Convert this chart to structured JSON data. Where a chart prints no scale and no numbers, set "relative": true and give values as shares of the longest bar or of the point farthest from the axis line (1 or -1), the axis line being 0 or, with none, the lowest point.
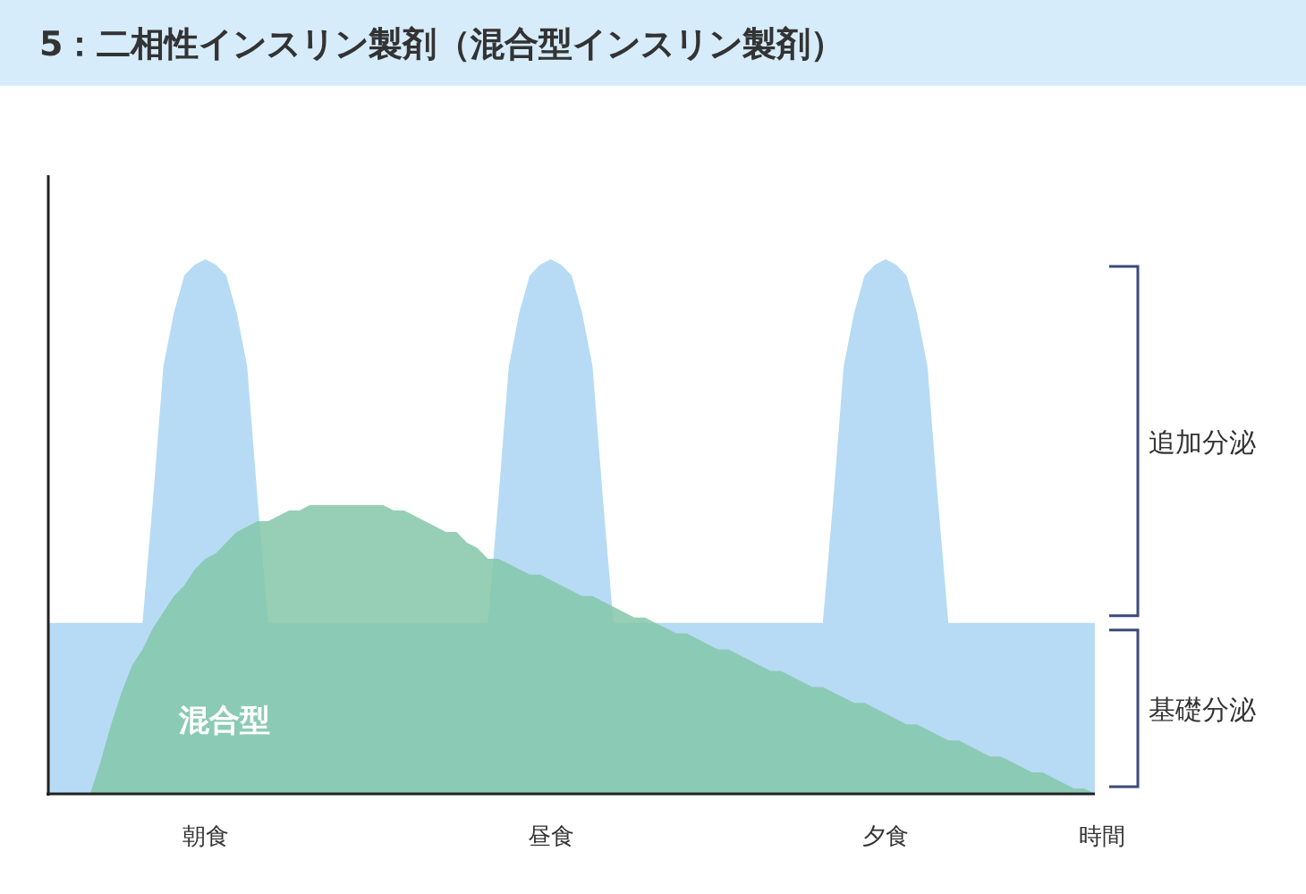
{
  "chart_data": {
    "type": "area",
    "title": "5：二相性インスリン製剤（混合型インスリン製剤）",
    "xlabel": "時間",
    "relative": true,
    "tick_labels": "x",
    "categories": [
      null,
      null,
      null,
      null,
      null,
      null,
      null,
      null,
      null,
      null,
      null,
      null,
      null,
      null,
      null,
      "朝食",
      null,
      null,
      null,
      null,
      null,
      null,
      null,
      null,
      null,
      null,
      null,
      null,
      null,
      null,
      null,
      null,
      null,
      null,
      null,
      null,
      null,
      null,
      null,
      null,
      null,
      null,
      null,
      null,
      null,
      null,
      null,
      null,
      "昼食",
      null,
      null,
      null,
      null,
      null,
      null,
      null,
      null,
      null,
      null,
      null,
      null,
      null,
      null,
      null,
      null,
      null,
      null,
      null,
      null,
      null,
      null,
      null,
      null,
      null,
      null,
      null,
      null,
      null,
      null,
      null,
      "夕食",
      null,
      null,
      null,
      null,
      null,
      null,
      null,
      null,
      null,
      null,
      null,
      null,
      null,
      null,
      null,
      null,
      null,
      null,
      null,
      null
    ],
    "annotations": [
      "追加分泌",
      "基礎分泌"
    ],
    "series": [
      {
        "color": "#b7dbf5",
        "values": [
          0.32,
          0.32,
          0.32,
          0.32,
          0.32,
          0.32,
          0.32,
          0.32,
          0.32,
          0.32,
          0.55,
          0.8,
          0.9,
          0.97,
          0.99,
          1,
          0.99,
          0.97,
          0.9,
          0.8,
          0.55,
          0.32,
          0.32,
          0.32,
          0.32,
          0.32,
          0.32,
          0.32,
          0.32,
          0.32,
          0.32,
          0.32,
          0.32,
          0.32,
          0.32,
          0.32,
          0.32,
          0.32,
          0.32,
          0.32,
          0.32,
          0.32,
          0.32,
          0.55,
          0.8,
          0.9,
          0.97,
          0.99,
          1,
          0.99,
          0.97,
          0.9,
          0.8,
          0.55,
          0.32,
          0.32,
          0.32,
          0.32,
          0.32,
          0.32,
          0.32,
          0.32,
          0.32,
          0.32,
          0.32,
          0.32,
          0.32,
          0.32,
          0.32,
          0.32,
          0.32,
          0.32,
          0.32,
          0.32,
          0.32,
          0.55,
          0.8,
          0.9,
          0.97,
          0.99,
          1,
          0.99,
          0.97,
          0.9,
          0.8,
          0.55,
          0.32,
          0.32,
          0.32,
          0.32,
          0.32,
          0.32,
          0.32,
          0.32,
          0.32,
          0.32,
          0.32,
          0.32,
          0.32,
          0.32,
          0.32
        ]
      },
      {
        "name": "混合型",
        "color": "#84c7a8",
        "values": [
          null,
          null,
          null,
          null,
          0,
          0.06,
          0.13,
          0.19,
          0.24,
          0.27,
          0.31,
          0.34,
          0.37,
          0.39,
          0.42,
          0.44,
          0.45,
          0.47,
          0.49,
          0.5,
          0.51,
          0.51,
          0.52,
          0.53,
          0.53,
          0.54,
          0.54,
          0.54,
          0.54,
          0.54,
          0.54,
          0.54,
          0.54,
          0.53,
          0.53,
          0.52,
          0.51,
          0.5,
          0.49,
          0.49,
          0.47,
          0.46,
          0.44,
          0.44,
          0.43,
          0.42,
          0.41,
          0.41,
          0.4,
          0.39,
          0.38,
          0.37,
          0.37,
          0.36,
          0.35,
          0.34,
          0.33,
          0.33,
          0.32,
          0.31,
          0.3,
          0.3,
          0.29,
          0.28,
          0.27,
          0.27,
          0.26,
          0.25,
          0.24,
          0.23,
          0.23,
          0.22,
          0.21,
          0.2,
          0.2,
          0.19,
          0.18,
          0.17,
          0.17,
          0.16,
          0.15,
          0.14,
          0.13,
          0.13,
          0.12,
          0.11,
          0.1,
          0.1,
          0.09,
          0.08,
          0.07,
          0.07,
          0.06,
          0.05,
          0.04,
          0.04,
          0.03,
          0.02,
          0.01,
          0.01,
          0
        ]
      }
    ]
  }
}
